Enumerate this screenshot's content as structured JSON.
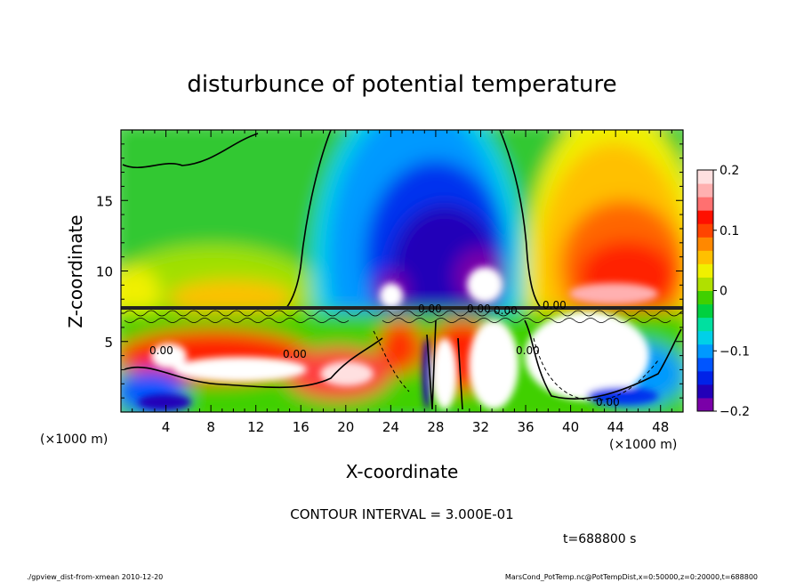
{
  "chart_data": {
    "type": "heatmap",
    "title": "disturbunce of potential temperature",
    "xlabel": "X-coordinate",
    "ylabel": "Z-coordinate",
    "x_unit_left": "(×1000 m)",
    "x_unit_right": "(×1000 m)",
    "xlim": [
      0,
      50
    ],
    "ylim": [
      0,
      20
    ],
    "x_ticks": [
      4,
      8,
      12,
      16,
      20,
      24,
      28,
      32,
      36,
      40,
      44,
      48
    ],
    "y_ticks": [
      5,
      10,
      15
    ],
    "colorbar": {
      "min": -0.2,
      "max": 0.2,
      "tick_values": [
        0.2,
        0.1,
        0,
        -0.1,
        -0.2
      ],
      "tick_labels": [
        "0.2",
        "0.1",
        "0",
        "−0.1",
        "−0.2"
      ],
      "palette": [
        "#7a00a8",
        "#2200b8",
        "#0022e8",
        "#0055ff",
        "#0099ff",
        "#00d0e8",
        "#00e0a0",
        "#00d040",
        "#40d000",
        "#b0e000",
        "#f0f000",
        "#ffc000",
        "#ff8800",
        "#ff4400",
        "#ff1000",
        "#ff7070",
        "#ffb0b0",
        "#ffe0e0"
      ]
    },
    "contour_interval_text": "CONTOUR INTERVAL = 3.000E-01",
    "time_text": "t=688800 s",
    "contour_labels": [
      "0.00",
      "0.00",
      "0.00",
      "0.00",
      "0.00",
      "0.00",
      "0.00",
      "0.00"
    ]
  },
  "footer": {
    "left": "./gpview_dist-from-xmean  2010-12-20",
    "right": "MarsCond_PotTemp.nc@PotTempDist,x=0:50000,z=0:20000,t=688800"
  }
}
